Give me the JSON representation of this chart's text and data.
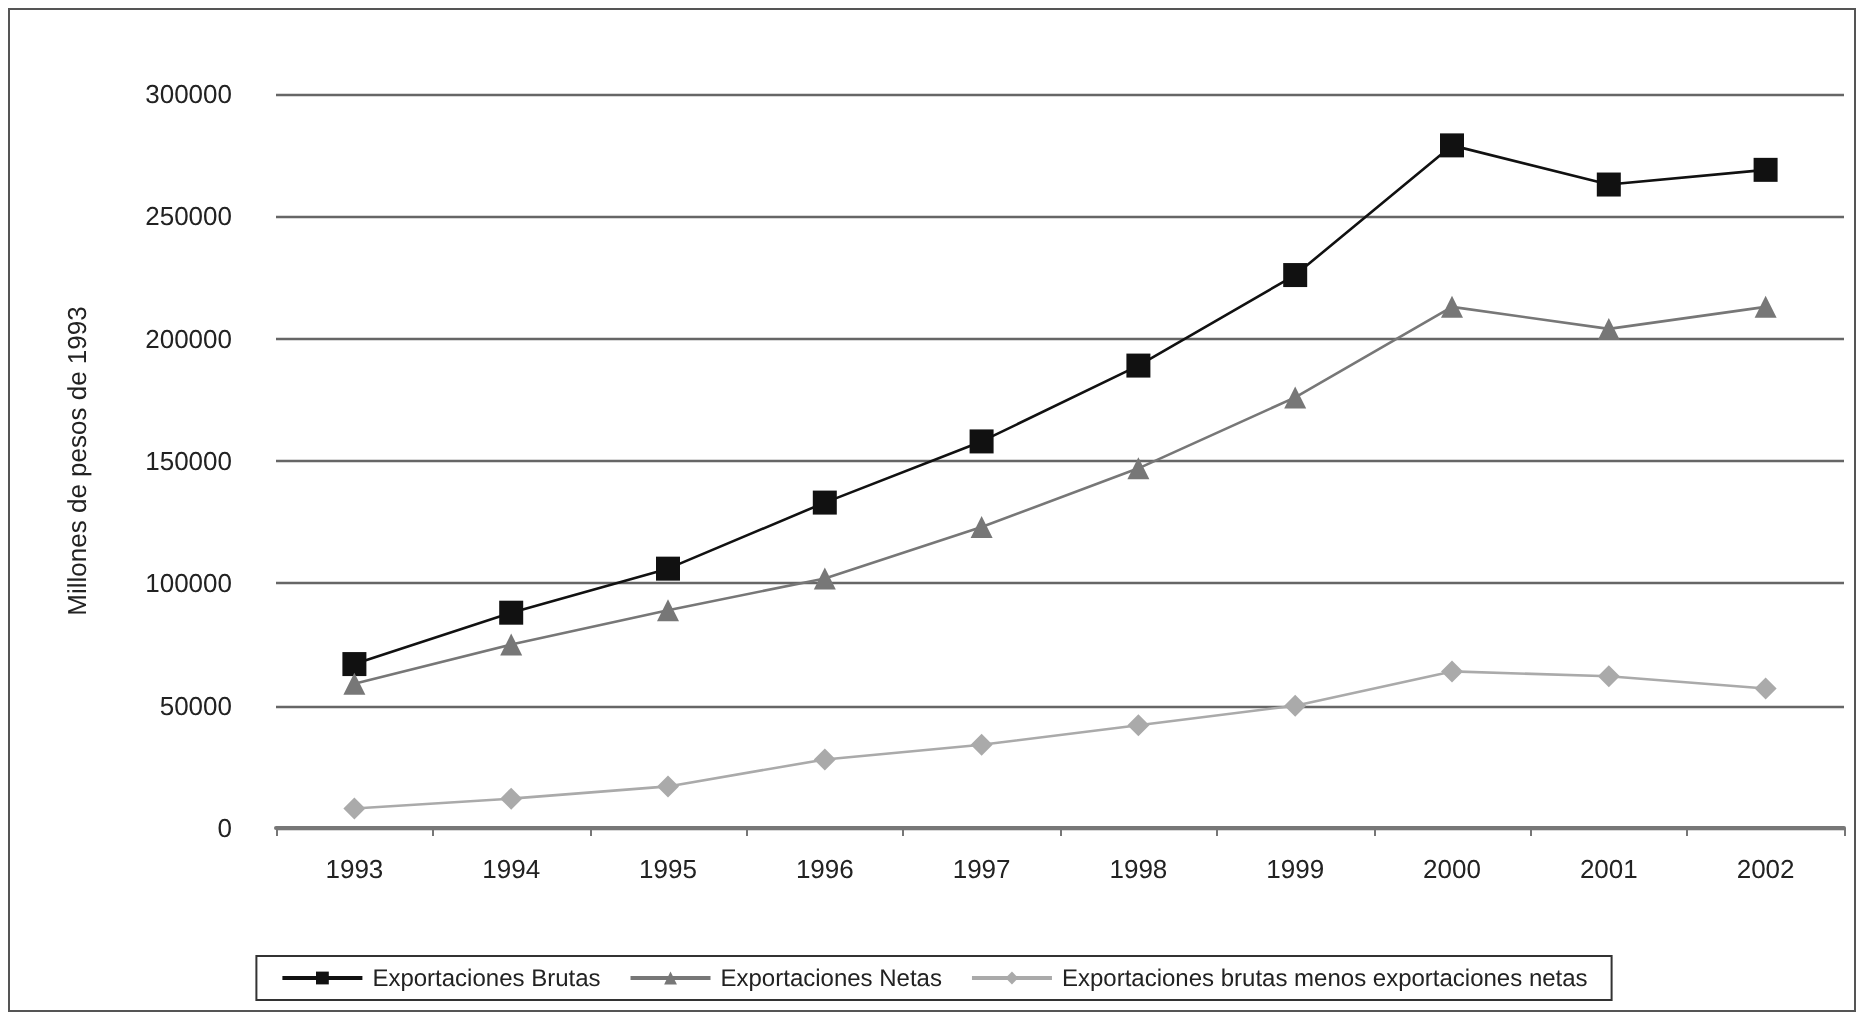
{
  "chart_data": {
    "type": "line",
    "ylabel": "Millones de pesos de 1993",
    "categories": [
      "1993",
      "1994",
      "1995",
      "1996",
      "1997",
      "1998",
      "1999",
      "2000",
      "2001",
      "2002"
    ],
    "series": [
      {
        "name": "Exportaciones Brutas",
        "color": "#111111",
        "marker": "square",
        "values": [
          67000,
          88000,
          106000,
          133000,
          158000,
          189000,
          226000,
          279000,
          263000,
          269000
        ]
      },
      {
        "name": "Exportaciones Netas",
        "color": "#777777",
        "marker": "triangle",
        "values": [
          59000,
          75000,
          89000,
          102000,
          123000,
          147000,
          176000,
          213000,
          204000,
          213000
        ]
      },
      {
        "name": "Exportaciones brutas menos exportaciones netas",
        "color": "#aaaaaa",
        "marker": "diamond",
        "values": [
          8000,
          12000,
          17000,
          28000,
          34000,
          42000,
          50000,
          64000,
          62000,
          57000
        ]
      }
    ],
    "ylim": [
      0,
      300000
    ],
    "yticks": [
      0,
      50000,
      100000,
      150000,
      200000,
      250000,
      300000
    ],
    "grid": "y",
    "legend": "bottom",
    "line_style": "solid"
  }
}
